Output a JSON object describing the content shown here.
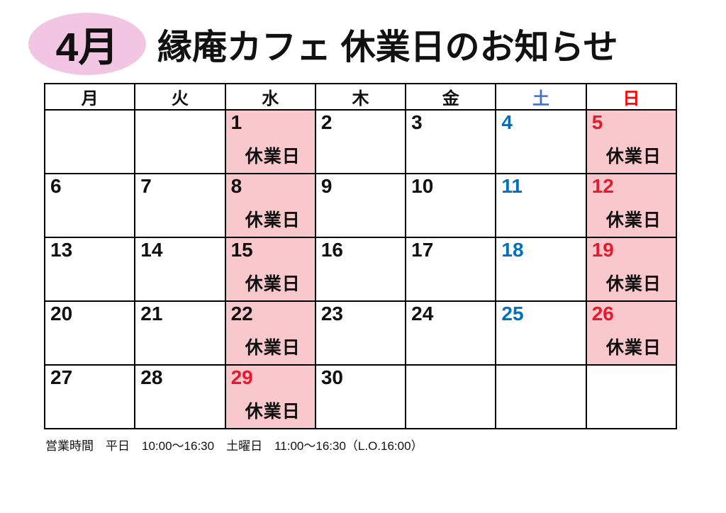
{
  "header": {
    "month_badge": "4月",
    "badge_bg": "#f2c6e2",
    "title": "縁庵カフェ 休業日のお知らせ"
  },
  "calendar": {
    "day_headers": [
      {
        "label": "月",
        "color": "#111111"
      },
      {
        "label": "火",
        "color": "#111111"
      },
      {
        "label": "水",
        "color": "#111111"
      },
      {
        "label": "木",
        "color": "#111111"
      },
      {
        "label": "金",
        "color": "#111111"
      },
      {
        "label": "土",
        "color": "#4472c4"
      },
      {
        "label": "日",
        "color": "#ff0000"
      }
    ],
    "closed_label": "休業日",
    "closed_bg": "#f9c8cc",
    "weekday_color": "#111111",
    "saturday_color": "#0070c0",
    "sunday_color": "#e8192c",
    "weeks": [
      {
        "cells": [
          {
            "day": ""
          },
          {
            "day": ""
          },
          {
            "day": "1",
            "closed": true
          },
          {
            "day": "2"
          },
          {
            "day": "3"
          },
          {
            "day": "4",
            "color": "#0070c0"
          },
          {
            "day": "5",
            "closed": true,
            "color": "#e8192c"
          }
        ]
      },
      {
        "cells": [
          {
            "day": "6"
          },
          {
            "day": "7"
          },
          {
            "day": "8",
            "closed": true
          },
          {
            "day": "9"
          },
          {
            "day": "10"
          },
          {
            "day": "11",
            "color": "#0070c0"
          },
          {
            "day": "12",
            "closed": true,
            "color": "#e8192c"
          }
        ]
      },
      {
        "cells": [
          {
            "day": "13"
          },
          {
            "day": "14"
          },
          {
            "day": "15",
            "closed": true
          },
          {
            "day": "16"
          },
          {
            "day": "17"
          },
          {
            "day": "18",
            "color": "#0070c0"
          },
          {
            "day": "19",
            "closed": true,
            "color": "#e8192c"
          }
        ]
      },
      {
        "cells": [
          {
            "day": "20"
          },
          {
            "day": "21"
          },
          {
            "day": "22",
            "closed": true
          },
          {
            "day": "23"
          },
          {
            "day": "24"
          },
          {
            "day": "25",
            "color": "#0070c0"
          },
          {
            "day": "26",
            "closed": true,
            "color": "#e8192c"
          }
        ]
      },
      {
        "cells": [
          {
            "day": "27"
          },
          {
            "day": "28"
          },
          {
            "day": "29",
            "closed": true,
            "color": "#e8192c"
          },
          {
            "day": "30"
          },
          {
            "day": ""
          },
          {
            "day": ""
          },
          {
            "day": ""
          }
        ]
      }
    ]
  },
  "footer": {
    "hours_note": "営業時間　平日　10:00～16:30　土曜日　11:00～16:30（L.O.16:00）"
  }
}
